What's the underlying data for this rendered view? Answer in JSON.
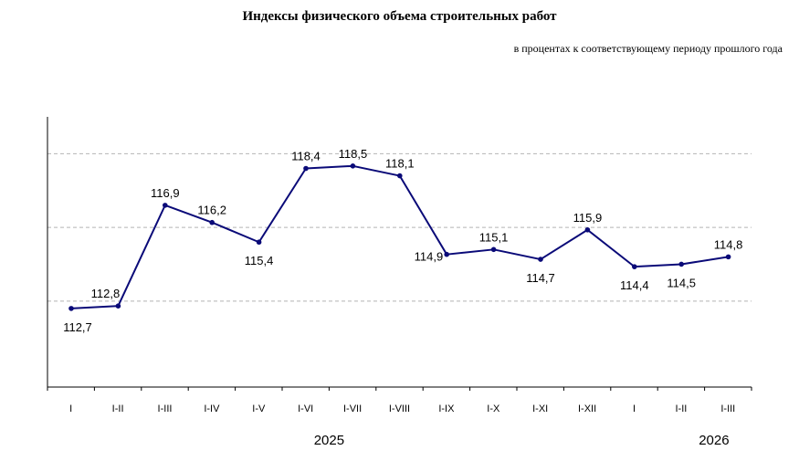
{
  "title": "Индексы физического объема строительных работ",
  "subtitle": "в процентах к соответствующему периоду прошлого года",
  "chart_data": {
    "type": "line",
    "title": "Индексы физического объема строительных работ",
    "subtitle": "в процентах к соответствующему периоду прошлого года",
    "categories": [
      "I",
      "I-II",
      "I-III",
      "I-IV",
      "I-V",
      "I-VI",
      "I-VII",
      "I-VIII",
      "I-IX",
      "I-X",
      "I-XI",
      "I-XII",
      "I",
      "I-II",
      "I-III"
    ],
    "values": [
      112.7,
      112.8,
      116.9,
      116.2,
      115.4,
      118.4,
      118.5,
      118.1,
      114.9,
      115.1,
      114.7,
      115.9,
      114.4,
      114.5,
      114.8
    ],
    "value_labels": [
      "112,7",
      "112,8",
      "116,9",
      "116,2",
      "115,4",
      "118,4",
      "118,5",
      "118,1",
      "114,9",
      "115,1",
      "114,7",
      "115,9",
      "114,4",
      "114,5",
      "114,8"
    ],
    "label_position": [
      "below",
      "above",
      "above",
      "above",
      "below",
      "above",
      "above",
      "above",
      "left",
      "above",
      "below",
      "above",
      "below",
      "below",
      "above"
    ],
    "year_groups": [
      {
        "label": "2025",
        "start": 0,
        "end": 11
      },
      {
        "label": "2026",
        "start": 12,
        "end": 14
      }
    ],
    "ylim": [
      109.5,
      120.5
    ],
    "gridlines": [
      113,
      116,
      119
    ],
    "grid": true,
    "legend": "none",
    "colors": {
      "line": "#0a0a78",
      "marker": "#0a0a78",
      "grid": "#b4b4b4",
      "axis": "#000000"
    }
  }
}
